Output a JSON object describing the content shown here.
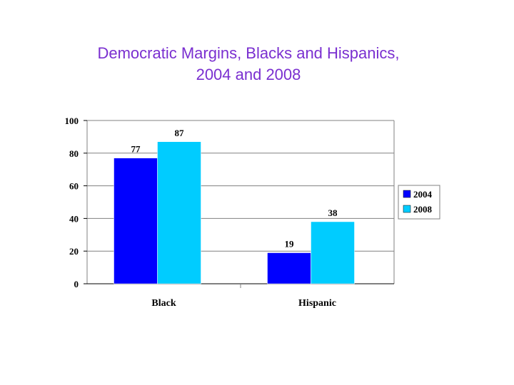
{
  "title": {
    "line1": "Democratic Margins, Blacks and Hispanics,",
    "line2": "2004 and 2008"
  },
  "chart_data": {
    "type": "bar",
    "title": "Democratic Margins, Blacks and Hispanics, 2004 and 2008",
    "categories": [
      "Black",
      "Hispanic"
    ],
    "series": [
      {
        "name": "2004",
        "values": [
          77,
          19
        ],
        "color": "#0000ff"
      },
      {
        "name": "2008",
        "values": [
          87,
          38
        ],
        "color": "#00ccff"
      }
    ],
    "ylim": [
      0,
      100
    ],
    "yticks": [
      0,
      20,
      40,
      60,
      80,
      100
    ],
    "xlabel": "",
    "ylabel": "",
    "grid": true,
    "legend": "right",
    "data_labels": true
  }
}
